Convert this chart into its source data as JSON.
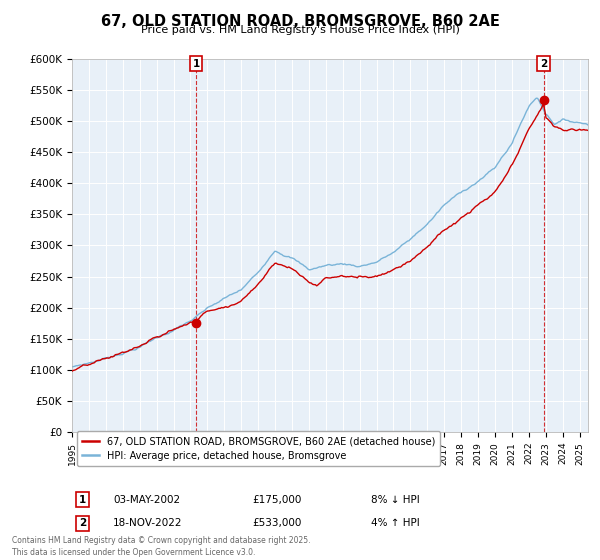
{
  "title": "67, OLD STATION ROAD, BROMSGROVE, B60 2AE",
  "subtitle": "Price paid vs. HM Land Registry's House Price Index (HPI)",
  "ylabel_ticks": [
    "£0",
    "£50K",
    "£100K",
    "£150K",
    "£200K",
    "£250K",
    "£300K",
    "£350K",
    "£400K",
    "£450K",
    "£500K",
    "£550K",
    "£600K"
  ],
  "ylim": [
    0,
    600000
  ],
  "xlim_start": 1995.0,
  "xlim_end": 2025.5,
  "hpi_color": "#7ab4d8",
  "price_color": "#cc0000",
  "marker1_date": 2002.34,
  "marker1_price": 175000,
  "marker2_date": 2022.88,
  "marker2_price": 533000,
  "legend_label1": "67, OLD STATION ROAD, BROMSGROVE, B60 2AE (detached house)",
  "legend_label2": "HPI: Average price, detached house, Bromsgrove",
  "annotation1_date": "03-MAY-2002",
  "annotation1_price": "£175,000",
  "annotation1_hpi": "8% ↓ HPI",
  "annotation2_date": "18-NOV-2022",
  "annotation2_price": "£533,000",
  "annotation2_hpi": "4% ↑ HPI",
  "footer": "Contains HM Land Registry data © Crown copyright and database right 2025.\nThis data is licensed under the Open Government Licence v3.0.",
  "background_color": "#ffffff",
  "plot_bg_color": "#e8f0f8",
  "grid_color": "#ffffff"
}
